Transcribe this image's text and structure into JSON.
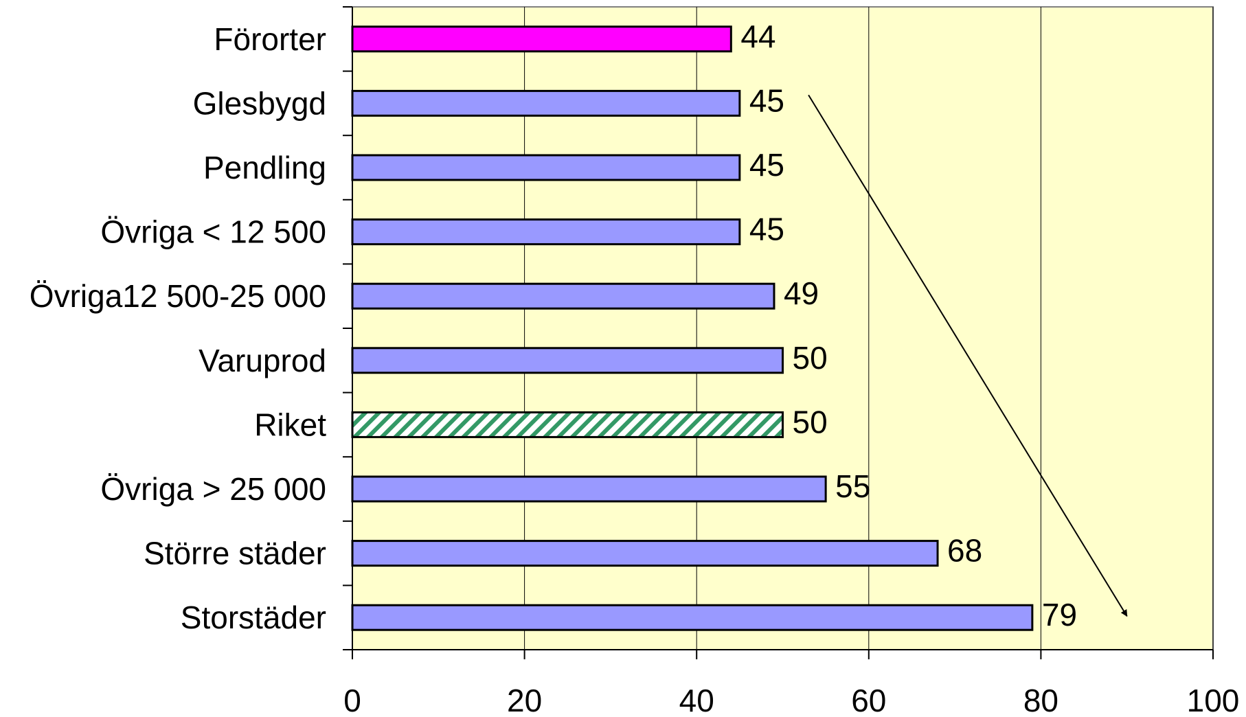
{
  "chart_data": {
    "type": "bar",
    "orientation": "horizontal",
    "categories": [
      "Förorter",
      "Glesbygd",
      "Pendling",
      "Övriga < 12 500",
      "Övriga12 500-25 000",
      "Varuprod",
      "Riket",
      "Övriga > 25 000",
      "Större städer",
      "Storstäder"
    ],
    "values": [
      44,
      45,
      45,
      45,
      49,
      50,
      50,
      55,
      68,
      79
    ],
    "data_labels": [
      "44",
      "45",
      "45",
      "45",
      "49",
      "50",
      "50",
      "55",
      "68",
      "79"
    ],
    "bar_styles": [
      "highlight",
      "normal",
      "normal",
      "normal",
      "normal",
      "normal",
      "hatched",
      "normal",
      "normal",
      "normal"
    ],
    "xlim": [
      0,
      100
    ],
    "xticks": [
      0,
      20,
      40,
      60,
      80,
      100
    ],
    "xtick_labels": [
      "0",
      "20",
      "40",
      "60",
      "80",
      "100"
    ],
    "title": "",
    "xlabel": "",
    "ylabel": "",
    "grid": "vertical",
    "legend": "none",
    "annotations": [
      {
        "type": "arrow",
        "from": {
          "x": 53,
          "category": "Glesbygd"
        },
        "to": {
          "x": 90,
          "category": "Storstäder"
        }
      }
    ],
    "colors": {
      "plot_background": "#FFFFCC",
      "bar_normal": "#9999FF",
      "bar_highlight": "#FF00FF",
      "bar_hatch": "#339966",
      "bar_hatch_bg": "#FFFFFF",
      "bar_border": "#000000",
      "grid": "#000000"
    }
  }
}
